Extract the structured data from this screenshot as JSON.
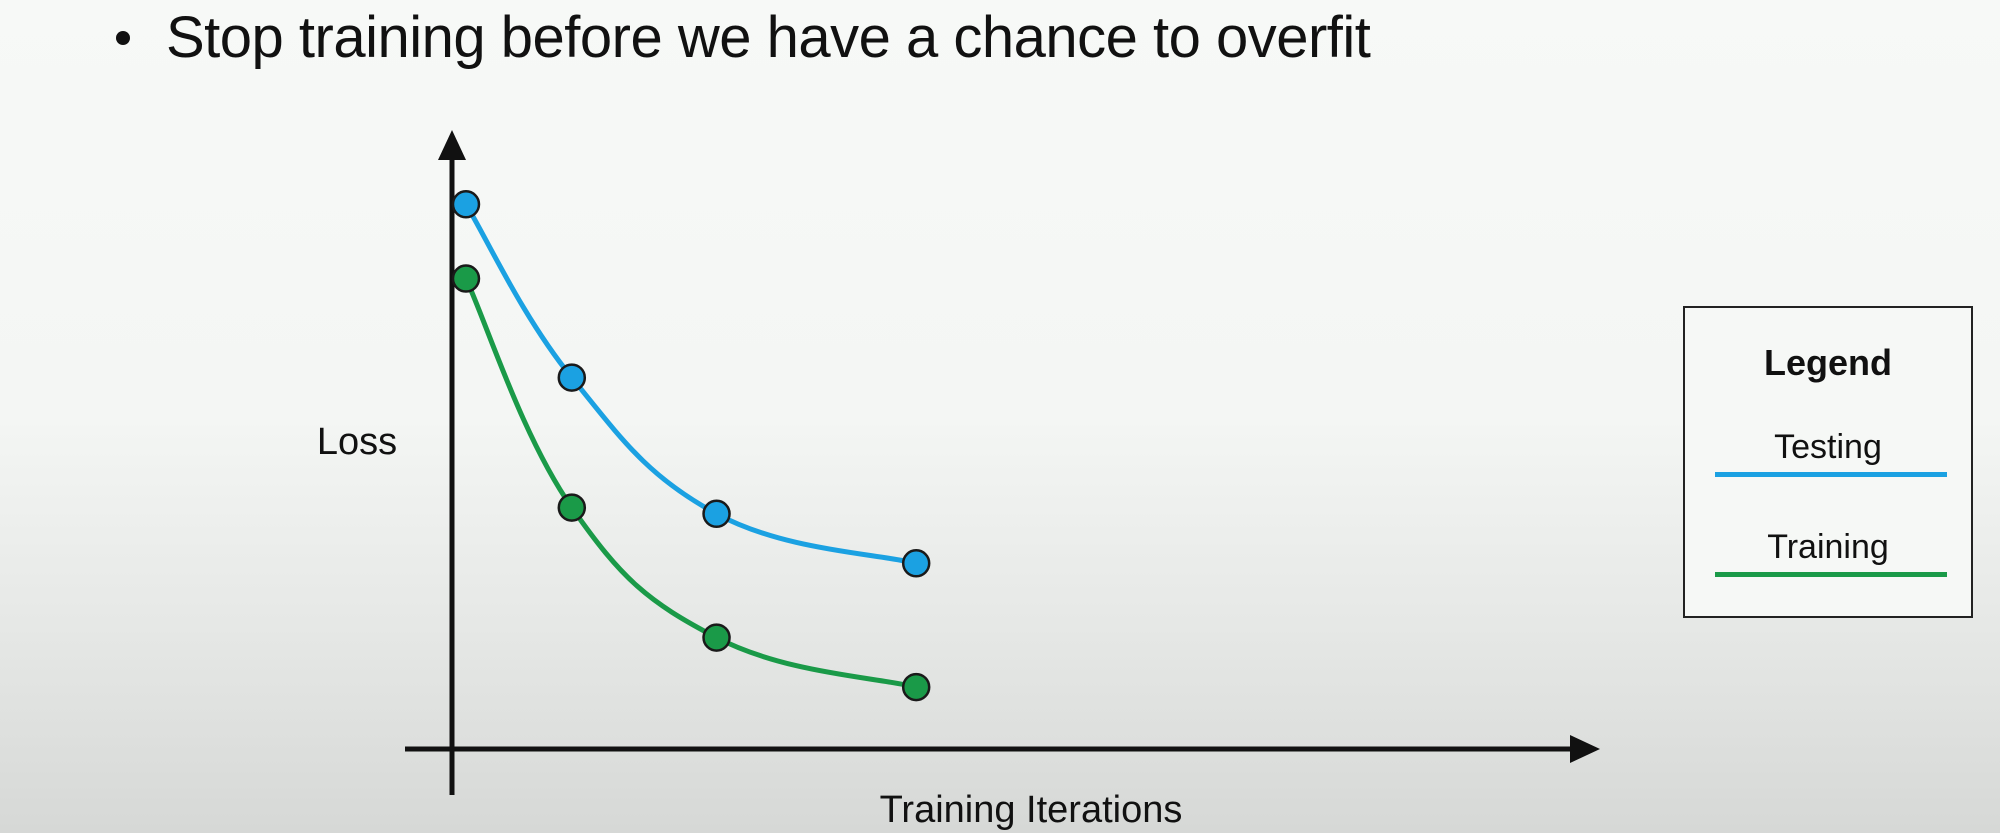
{
  "slide": {
    "bullet_text": "Stop training before we have a chance to overfit"
  },
  "chart_data": {
    "type": "line",
    "xlabel": "Training Iterations",
    "ylabel": "Loss",
    "x": [
      1,
      2,
      3,
      4
    ],
    "series": [
      {
        "name": "Testing",
        "color": "#1ba1e2",
        "values": [
          0.88,
          0.6,
          0.38,
          0.3
        ],
        "x": [
          0.14,
          1.2,
          2.65,
          4.65
        ]
      },
      {
        "name": "Training",
        "color": "#1a9a48",
        "values": [
          0.76,
          0.39,
          0.18,
          0.1
        ],
        "x": [
          0.14,
          1.2,
          2.65,
          4.65
        ]
      }
    ],
    "xlim": [
      0,
      11.5
    ],
    "ylim": [
      0,
      1.0
    ],
    "grid": false,
    "legend": {
      "title": "Legend",
      "placement": "right",
      "entries": [
        "Testing",
        "Training"
      ]
    }
  }
}
